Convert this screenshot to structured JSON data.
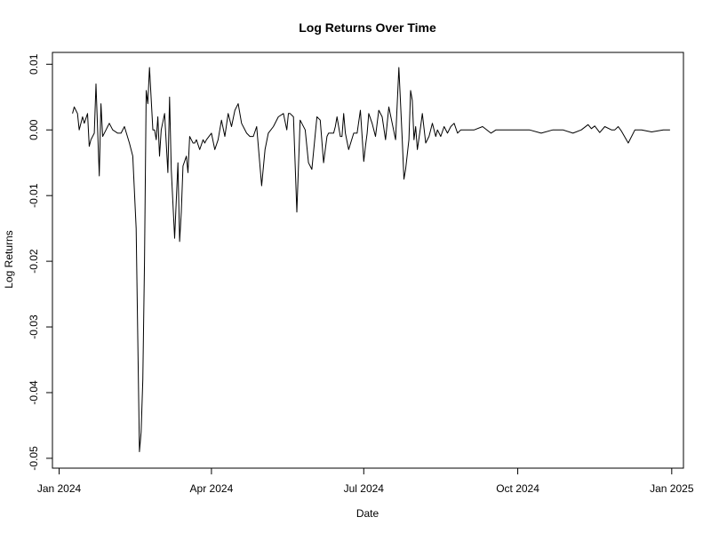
{
  "chart_data": {
    "type": "line",
    "title": "Log Returns Over Time",
    "xlabel": "Date",
    "ylabel": "Log Returns",
    "x_range": [
      "2023-12-28",
      "2025-01-08"
    ],
    "ylim": [
      -0.0515,
      0.0118
    ],
    "x_ticks": [
      {
        "date": "2024-01-01",
        "label": "Jan 2024"
      },
      {
        "date": "2024-04-01",
        "label": "Apr 2024"
      },
      {
        "date": "2024-07-01",
        "label": "Jul 2024"
      },
      {
        "date": "2024-10-01",
        "label": "Oct 2024"
      },
      {
        "date": "2025-01-01",
        "label": "Jan 2025"
      }
    ],
    "y_ticks": [
      {
        "value": -0.05,
        "label": "-0.05"
      },
      {
        "value": -0.04,
        "label": "-0.04"
      },
      {
        "value": -0.03,
        "label": "-0.03"
      },
      {
        "value": -0.02,
        "label": "-0.02"
      },
      {
        "value": -0.01,
        "label": "-0.01"
      },
      {
        "value": 0.0,
        "label": "0.00"
      },
      {
        "value": 0.01,
        "label": "0.01"
      }
    ],
    "grid": false,
    "series": [
      {
        "x": [
          "2024-01-09",
          "2024-01-10",
          "2024-01-12",
          "2024-01-13",
          "2024-01-15",
          "2024-01-16",
          "2024-01-18",
          "2024-01-19",
          "2024-01-20",
          "2024-01-22",
          "2024-01-23",
          "2024-01-25",
          "2024-01-26",
          "2024-01-27",
          "2024-01-29",
          "2024-01-30",
          "2024-01-31",
          "2024-02-02",
          "2024-02-05",
          "2024-02-07",
          "2024-02-09",
          "2024-02-12",
          "2024-02-14",
          "2024-02-16",
          "2024-02-18",
          "2024-02-19",
          "2024-02-20",
          "2024-02-21",
          "2024-02-22",
          "2024-02-23",
          "2024-02-24",
          "2024-02-26",
          "2024-02-27",
          "2024-02-28",
          "2024-02-29",
          "2024-03-01",
          "2024-03-02",
          "2024-03-04",
          "2024-03-06",
          "2024-03-07",
          "2024-03-08",
          "2024-03-10",
          "2024-03-12",
          "2024-03-13",
          "2024-03-14",
          "2024-03-15",
          "2024-03-17",
          "2024-03-18",
          "2024-03-19",
          "2024-03-20",
          "2024-03-21",
          "2024-03-22",
          "2024-03-23",
          "2024-03-25",
          "2024-03-27",
          "2024-03-28",
          "2024-03-29",
          "2024-04-01",
          "2024-04-03",
          "2024-04-05",
          "2024-04-07",
          "2024-04-09",
          "2024-04-11",
          "2024-04-13",
          "2024-04-15",
          "2024-04-17",
          "2024-04-19",
          "2024-04-22",
          "2024-04-24",
          "2024-04-26",
          "2024-04-28",
          "2024-05-01",
          "2024-05-03",
          "2024-05-05",
          "2024-05-08",
          "2024-05-11",
          "2024-05-14",
          "2024-05-16",
          "2024-05-17",
          "2024-05-18",
          "2024-05-20",
          "2024-05-22",
          "2024-05-24",
          "2024-05-27",
          "2024-05-29",
          "2024-05-31",
          "2024-06-03",
          "2024-06-05",
          "2024-06-07",
          "2024-06-09",
          "2024-06-10",
          "2024-06-12",
          "2024-06-13",
          "2024-06-14",
          "2024-06-15",
          "2024-06-17",
          "2024-06-18",
          "2024-06-19",
          "2024-06-20",
          "2024-06-22",
          "2024-06-25",
          "2024-06-27",
          "2024-06-29",
          "2024-07-01",
          "2024-07-02",
          "2024-07-03",
          "2024-07-04",
          "2024-07-06",
          "2024-07-08",
          "2024-07-10",
          "2024-07-12",
          "2024-07-14",
          "2024-07-16",
          "2024-07-18",
          "2024-07-20",
          "2024-07-22",
          "2024-07-24",
          "2024-07-25",
          "2024-07-26",
          "2024-07-28",
          "2024-07-29",
          "2024-07-30",
          "2024-07-31",
          "2024-08-01",
          "2024-08-02",
          "2024-08-04",
          "2024-08-05",
          "2024-08-07",
          "2024-08-09",
          "2024-08-11",
          "2024-08-13",
          "2024-08-14",
          "2024-08-16",
          "2024-08-18",
          "2024-08-20",
          "2024-08-22",
          "2024-08-24",
          "2024-08-26",
          "2024-08-28",
          "2024-08-30",
          "2024-09-01",
          "2024-09-05",
          "2024-09-10",
          "2024-09-15",
          "2024-09-18",
          "2024-09-22",
          "2024-09-27",
          "2024-10-02",
          "2024-10-08",
          "2024-10-15",
          "2024-10-22",
          "2024-10-28",
          "2024-11-03",
          "2024-11-08",
          "2024-11-12",
          "2024-11-14",
          "2024-11-16",
          "2024-11-19",
          "2024-11-22",
          "2024-11-26",
          "2024-11-28",
          "2024-11-30",
          "2024-12-02",
          "2024-12-06",
          "2024-12-10",
          "2024-12-14",
          "2024-12-20",
          "2024-12-27",
          "2024-12-31"
        ],
        "y": [
          0.0025,
          0.0035,
          0.0025,
          0.0,
          0.002,
          0.001,
          0.0025,
          -0.0025,
          -0.0015,
          -0.0005,
          0.007,
          -0.007,
          0.004,
          -0.001,
          0.0,
          0.0005,
          0.001,
          0.0,
          -0.0005,
          -0.0005,
          0.0005,
          -0.002,
          -0.004,
          -0.015,
          -0.049,
          -0.046,
          -0.038,
          -0.02,
          0.006,
          0.004,
          0.0095,
          0.0,
          0.0,
          -0.0015,
          0.002,
          -0.004,
          0.0,
          0.0025,
          -0.0065,
          0.005,
          -0.006,
          -0.0165,
          -0.005,
          -0.017,
          -0.0125,
          -0.0055,
          -0.004,
          -0.0065,
          -0.001,
          -0.0015,
          -0.002,
          -0.002,
          -0.0015,
          -0.003,
          -0.0015,
          -0.002,
          -0.0015,
          -0.0005,
          -0.003,
          -0.0015,
          0.0015,
          -0.001,
          0.0025,
          0.0005,
          0.003,
          0.004,
          0.001,
          -0.0005,
          -0.001,
          -0.001,
          0.0005,
          -0.0085,
          -0.003,
          -0.0005,
          0.0005,
          0.002,
          0.0025,
          0.0,
          0.0025,
          0.0025,
          0.002,
          -0.0125,
          0.0015,
          0.0,
          -0.005,
          -0.006,
          0.002,
          0.0015,
          -0.005,
          -0.001,
          -0.0005,
          -0.0005,
          -0.0005,
          0.0005,
          0.002,
          -0.001,
          -0.001,
          0.0025,
          -0.0005,
          -0.003,
          -0.0005,
          -0.0005,
          0.003,
          -0.0048,
          -0.0025,
          -0.0005,
          0.0025,
          0.001,
          -0.001,
          0.003,
          0.002,
          -0.0015,
          0.0035,
          0.001,
          -0.0015,
          0.0095,
          -0.0015,
          -0.0075,
          -0.006,
          -0.0015,
          0.006,
          0.0045,
          -0.0015,
          0.0005,
          -0.003,
          0.0005,
          0.0025,
          -0.002,
          -0.001,
          0.001,
          -0.001,
          0.0,
          -0.001,
          0.0005,
          -0.0005,
          0.0005,
          0.001,
          -0.0005,
          0.0,
          0.0,
          0.0,
          0.0,
          0.0005,
          -0.0005,
          0.0,
          0.0,
          0.0,
          0.0,
          0.0,
          -0.0005,
          0.0,
          0.0,
          -0.0005,
          0.0,
          0.0008,
          0.0002,
          0.0006,
          -0.0004,
          0.0005,
          0.0,
          0.0,
          0.0005,
          -0.0002,
          -0.002,
          0.0,
          0.0,
          -0.0003,
          0.0,
          0.0
        ]
      }
    ]
  }
}
